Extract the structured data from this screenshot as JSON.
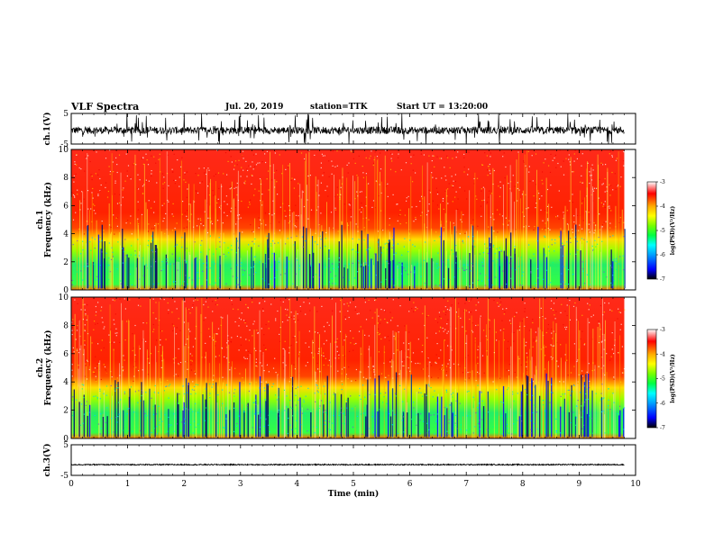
{
  "header": {
    "title": "VLF Spectra",
    "date": "Jul. 20, 2019",
    "station": "station=TTK",
    "start": "Start UT = 13:20:00"
  },
  "chart_data": [
    {
      "type": "line",
      "panel": "ch1-waveform",
      "ylabel": "ch.1(V)",
      "ylim": [
        -5,
        5
      ],
      "y_ticks": [
        "5",
        "-5"
      ],
      "xlim": [
        0,
        10
      ],
      "description_visible": "noisy waveform, baseline near 0 V with frequent spikes to ±5 V",
      "trace_color": "#000000"
    },
    {
      "type": "heatmap",
      "panel": "ch1-spectrogram",
      "ylabel": "ch.1",
      "ylabel2": "Frequency (kHz)",
      "ylim": [
        0,
        10
      ],
      "y_ticks": [
        "0",
        "2",
        "4",
        "6",
        "8",
        "10"
      ],
      "xlim": [
        0,
        9.8
      ],
      "colorbar": {
        "label": "log(PSD)(V²/Hz)",
        "range": [
          -7,
          -3
        ],
        "ticks": [
          "-3",
          "-4",
          "-5",
          "-6",
          "-7"
        ]
      }
    },
    {
      "type": "heatmap",
      "panel": "ch2-spectrogram",
      "ylabel": "ch.2",
      "ylabel2": "Frequency (kHz)",
      "ylim": [
        0,
        10
      ],
      "y_ticks": [
        "0",
        "2",
        "4",
        "6",
        "8",
        "10"
      ],
      "xlim": [
        0,
        9.8
      ],
      "colorbar": {
        "label": "log(PSD)(V²/Hz)",
        "range": [
          -7,
          -3
        ],
        "ticks": [
          "-3",
          "-4",
          "-5",
          "-6",
          "-7"
        ]
      }
    },
    {
      "type": "line",
      "panel": "ch3-waveform",
      "ylabel": "ch.3(V)",
      "ylim": [
        -5,
        5
      ],
      "y_ticks": [
        "5",
        "-5"
      ],
      "xlim": [
        0,
        10
      ],
      "values_constant": -1.5,
      "trace_color": "#000000"
    }
  ],
  "x_axis": {
    "label": "Time (min)",
    "ticks": [
      "0",
      "1",
      "2",
      "3",
      "4",
      "5",
      "6",
      "7",
      "8",
      "9",
      "10"
    ],
    "range": [
      0,
      10
    ]
  },
  "colors": {
    "colormap": [
      "#000055",
      "#0000ff",
      "#00a0ff",
      "#00ffff",
      "#00ff66",
      "#66ff00",
      "#ffff00",
      "#ffaa00",
      "#ff0000",
      "#ffffff"
    ]
  }
}
